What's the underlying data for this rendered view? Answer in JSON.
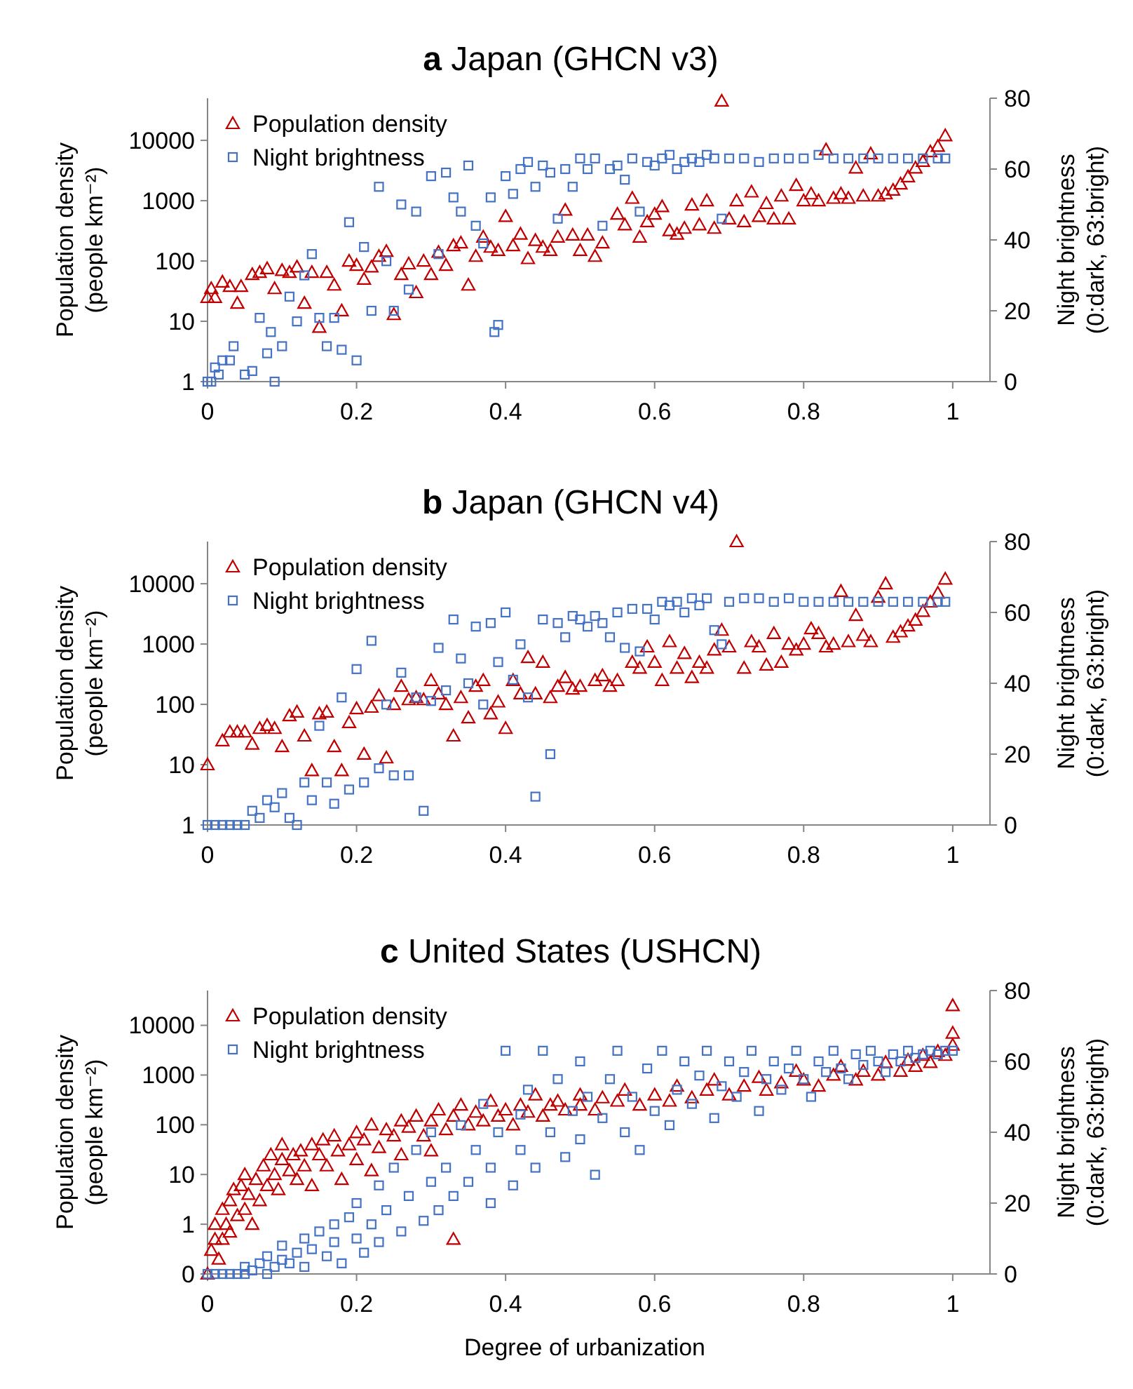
{
  "chart_data": [
    {
      "type": "scatter",
      "title": "a Japan (GHCN v3)",
      "ylabel": "Population density\n(people km⁻²)",
      "y2label": "Night brightness\n(0:dark, 63:bright)",
      "xlim": [
        0,
        1.05
      ],
      "xticks": [
        0,
        0.2,
        0.4,
        0.6,
        0.8,
        1
      ],
      "log": "y",
      "ylim": [
        1,
        50000
      ],
      "yticks": [
        1,
        10,
        100,
        1000,
        10000
      ],
      "y2lim": [
        0,
        80
      ],
      "y2ticks": [
        0,
        20,
        40,
        60,
        80
      ],
      "grid": false,
      "legend": "top left",
      "series": [
        {
          "name": "Population density",
          "color": "#c00000",
          "marker": "triangle",
          "x": [
            0,
            0.005,
            0.01,
            0.02,
            0.03,
            0.04,
            0.045,
            0.06,
            0.07,
            0.08,
            0.09,
            0.1,
            0.11,
            0.12,
            0.13,
            0.14,
            0.15,
            0.16,
            0.17,
            0.18,
            0.19,
            0.2,
            0.21,
            0.22,
            0.23,
            0.24,
            0.25,
            0.26,
            0.27,
            0.28,
            0.29,
            0.3,
            0.31,
            0.32,
            0.33,
            0.34,
            0.35,
            0.36,
            0.37,
            0.38,
            0.39,
            0.4,
            0.41,
            0.42,
            0.43,
            0.44,
            0.45,
            0.46,
            0.47,
            0.48,
            0.49,
            0.5,
            0.51,
            0.52,
            0.53,
            0.55,
            0.56,
            0.57,
            0.58,
            0.59,
            0.6,
            0.61,
            0.62,
            0.63,
            0.64,
            0.65,
            0.66,
            0.67,
            0.68,
            0.69,
            0.7,
            0.71,
            0.72,
            0.73,
            0.74,
            0.75,
            0.76,
            0.77,
            0.78,
            0.79,
            0.8,
            0.81,
            0.82,
            0.83,
            0.84,
            0.85,
            0.86,
            0.87,
            0.88,
            0.89,
            0.9,
            0.91,
            0.92,
            0.93,
            0.94,
            0.95,
            0.96,
            0.97,
            0.98,
            0.99
          ],
          "values": [
            25,
            35,
            25,
            45,
            38,
            20,
            38,
            60,
            65,
            75,
            35,
            70,
            65,
            80,
            20,
            65,
            8,
            65,
            40,
            15,
            100,
            85,
            50,
            80,
            120,
            145,
            13,
            60,
            90,
            30,
            100,
            60,
            140,
            85,
            180,
            200,
            40,
            120,
            250,
            170,
            150,
            550,
            180,
            280,
            110,
            220,
            170,
            150,
            250,
            700,
            270,
            150,
            270,
            120,
            200,
            600,
            400,
            1100,
            250,
            450,
            600,
            800,
            320,
            280,
            350,
            850,
            400,
            1000,
            350,
            45000,
            500,
            1000,
            450,
            1400,
            550,
            900,
            500,
            1200,
            500,
            1800,
            1000,
            1300,
            1000,
            7000,
            1100,
            1300,
            1100,
            3500,
            1200,
            6000,
            1200,
            1300,
            1500,
            1900,
            2500,
            3500,
            4500,
            6500,
            8000,
            12000
          ]
        },
        {
          "name": "Night brightness",
          "color": "#4472c4",
          "marker": "square",
          "axis": "y2",
          "x": [
            0,
            0.005,
            0.01,
            0.015,
            0.02,
            0.03,
            0.035,
            0.05,
            0.06,
            0.07,
            0.08,
            0.085,
            0.09,
            0.1,
            0.11,
            0.12,
            0.13,
            0.14,
            0.15,
            0.16,
            0.17,
            0.18,
            0.19,
            0.2,
            0.21,
            0.22,
            0.23,
            0.24,
            0.25,
            0.26,
            0.27,
            0.28,
            0.3,
            0.31,
            0.32,
            0.33,
            0.34,
            0.35,
            0.36,
            0.37,
            0.38,
            0.385,
            0.39,
            0.4,
            0.41,
            0.42,
            0.43,
            0.44,
            0.45,
            0.46,
            0.47,
            0.48,
            0.49,
            0.5,
            0.51,
            0.52,
            0.53,
            0.54,
            0.55,
            0.56,
            0.57,
            0.58,
            0.59,
            0.6,
            0.61,
            0.62,
            0.63,
            0.64,
            0.65,
            0.66,
            0.67,
            0.68,
            0.69,
            0.7,
            0.72,
            0.74,
            0.76,
            0.78,
            0.8,
            0.82,
            0.84,
            0.86,
            0.88,
            0.9,
            0.92,
            0.94,
            0.96,
            0.98,
            0.99
          ],
          "values": [
            0,
            0,
            4,
            2,
            6,
            6,
            10,
            2,
            3,
            18,
            8,
            14,
            0,
            10,
            24,
            17,
            30,
            36,
            18,
            10,
            18,
            9,
            45,
            6,
            38,
            20,
            55,
            34,
            20,
            50,
            26,
            48,
            58,
            36,
            59,
            52,
            48,
            61,
            44,
            39,
            52,
            14,
            16,
            58,
            53,
            60,
            62,
            55,
            61,
            59,
            46,
            60,
            55,
            63,
            60,
            63,
            44,
            60,
            61,
            57,
            63,
            48,
            62,
            61,
            63,
            64,
            60,
            62,
            63,
            62,
            64,
            63,
            46,
            63,
            63,
            62,
            63,
            63,
            63,
            64,
            63,
            63,
            63,
            63,
            63,
            63,
            63,
            63,
            63
          ]
        }
      ]
    },
    {
      "type": "scatter",
      "title": "b Japan (GHCN v4)",
      "ylabel": "Population density\n(people km⁻²)",
      "y2label": "Night brightness\n(0:dark, 63:bright)",
      "xlim": [
        0,
        1.05
      ],
      "xticks": [
        0,
        0.2,
        0.4,
        0.6,
        0.8,
        1
      ],
      "log": "y",
      "ylim": [
        1,
        50000
      ],
      "yticks": [
        1,
        10,
        100,
        1000,
        10000
      ],
      "y2lim": [
        0,
        80
      ],
      "y2ticks": [
        0,
        20,
        40,
        60,
        80
      ],
      "grid": false,
      "legend": "top left",
      "series": [
        {
          "name": "Population density",
          "color": "#c00000",
          "marker": "triangle",
          "x": [
            0,
            0.02,
            0.03,
            0.04,
            0.05,
            0.06,
            0.07,
            0.08,
            0.09,
            0.1,
            0.11,
            0.12,
            0.13,
            0.14,
            0.15,
            0.16,
            0.17,
            0.18,
            0.19,
            0.2,
            0.21,
            0.22,
            0.23,
            0.24,
            0.25,
            0.26,
            0.27,
            0.28,
            0.29,
            0.3,
            0.31,
            0.32,
            0.33,
            0.34,
            0.35,
            0.36,
            0.37,
            0.38,
            0.39,
            0.4,
            0.41,
            0.42,
            0.43,
            0.44,
            0.45,
            0.46,
            0.47,
            0.48,
            0.49,
            0.5,
            0.52,
            0.53,
            0.54,
            0.55,
            0.57,
            0.58,
            0.59,
            0.6,
            0.61,
            0.62,
            0.63,
            0.64,
            0.65,
            0.66,
            0.67,
            0.68,
            0.69,
            0.7,
            0.71,
            0.72,
            0.73,
            0.74,
            0.75,
            0.76,
            0.77,
            0.78,
            0.79,
            0.8,
            0.81,
            0.82,
            0.83,
            0.84,
            0.85,
            0.86,
            0.87,
            0.88,
            0.89,
            0.9,
            0.91,
            0.92,
            0.93,
            0.94,
            0.95,
            0.96,
            0.97,
            0.98,
            0.99
          ],
          "values": [
            10,
            25,
            35,
            35,
            35,
            22,
            40,
            45,
            40,
            20,
            65,
            75,
            30,
            8,
            70,
            75,
            20,
            8,
            50,
            85,
            15,
            90,
            140,
            13,
            100,
            200,
            120,
            130,
            120,
            250,
            150,
            100,
            30,
            130,
            60,
            200,
            250,
            70,
            110,
            40,
            250,
            150,
            600,
            150,
            500,
            130,
            200,
            280,
            180,
            200,
            250,
            300,
            200,
            250,
            500,
            400,
            900,
            500,
            250,
            1100,
            400,
            700,
            280,
            500,
            400,
            800,
            1700,
            900,
            50000,
            400,
            1100,
            900,
            450,
            1500,
            500,
            1000,
            800,
            1000,
            1800,
            1500,
            900,
            1000,
            7500,
            1100,
            3000,
            1400,
            1100,
            6000,
            10000,
            1300,
            1600,
            2000,
            2500,
            3500,
            5000,
            7000,
            12000
          ]
        },
        {
          "name": "Night brightness",
          "color": "#4472c4",
          "marker": "square",
          "axis": "y2",
          "x": [
            0,
            0.01,
            0.02,
            0.03,
            0.04,
            0.05,
            0.06,
            0.07,
            0.08,
            0.09,
            0.1,
            0.11,
            0.12,
            0.13,
            0.14,
            0.15,
            0.16,
            0.17,
            0.18,
            0.19,
            0.2,
            0.21,
            0.22,
            0.23,
            0.24,
            0.25,
            0.26,
            0.27,
            0.28,
            0.29,
            0.3,
            0.31,
            0.32,
            0.33,
            0.34,
            0.35,
            0.36,
            0.37,
            0.38,
            0.39,
            0.4,
            0.41,
            0.42,
            0.43,
            0.44,
            0.45,
            0.46,
            0.47,
            0.48,
            0.49,
            0.5,
            0.51,
            0.52,
            0.53,
            0.54,
            0.55,
            0.56,
            0.57,
            0.58,
            0.59,
            0.6,
            0.61,
            0.62,
            0.63,
            0.64,
            0.65,
            0.66,
            0.67,
            0.68,
            0.69,
            0.7,
            0.72,
            0.74,
            0.76,
            0.78,
            0.8,
            0.82,
            0.84,
            0.86,
            0.88,
            0.9,
            0.92,
            0.94,
            0.96,
            0.98,
            0.99
          ],
          "values": [
            0,
            0,
            0,
            0,
            0,
            0,
            4,
            2,
            7,
            5,
            9,
            2,
            0,
            12,
            7,
            28,
            12,
            6,
            36,
            10,
            44,
            12,
            52,
            16,
            34,
            14,
            43,
            14,
            36,
            4,
            35,
            50,
            38,
            58,
            47,
            40,
            56,
            34,
            57,
            46,
            60,
            41,
            51,
            36,
            8,
            58,
            20,
            57,
            53,
            59,
            58,
            56,
            59,
            57,
            53,
            60,
            50,
            61,
            49,
            61,
            58,
            63,
            62,
            63,
            60,
            64,
            62,
            64,
            55,
            51,
            63,
            64,
            64,
            63,
            64,
            63,
            63,
            63,
            63,
            63,
            63,
            63,
            63,
            63,
            63,
            63
          ]
        }
      ]
    },
    {
      "type": "scatter",
      "title": "c United States (USHCN)",
      "xlabel": "Degree of urbanization",
      "ylabel": "Population density\n(people km⁻²)",
      "y2label": "Night brightness\n(0:dark, 63:bright)",
      "xlim": [
        0,
        1.05
      ],
      "xticks": [
        0,
        0.2,
        0.4,
        0.6,
        0.8,
        1
      ],
      "log": "y",
      "ylim": [
        0.1,
        50000
      ],
      "yticks": [
        {
          "value": 0.1,
          "label": "0"
        },
        1,
        10,
        100,
        1000,
        10000
      ],
      "y2lim": [
        0,
        80
      ],
      "y2ticks": [
        0,
        20,
        40,
        60,
        80
      ],
      "grid": false,
      "legend": "top left",
      "series": [
        {
          "name": "Population density",
          "color": "#c00000",
          "marker": "triangle",
          "x": [
            0,
            0.005,
            0.01,
            0.01,
            0.015,
            0.02,
            0.02,
            0.025,
            0.03,
            0.03,
            0.035,
            0.04,
            0.045,
            0.05,
            0.05,
            0.055,
            0.06,
            0.065,
            0.07,
            0.075,
            0.08,
            0.085,
            0.09,
            0.095,
            0.1,
            0.1,
            0.11,
            0.115,
            0.12,
            0.125,
            0.13,
            0.14,
            0.14,
            0.15,
            0.155,
            0.16,
            0.17,
            0.175,
            0.18,
            0.19,
            0.2,
            0.2,
            0.21,
            0.22,
            0.22,
            0.23,
            0.24,
            0.25,
            0.26,
            0.26,
            0.27,
            0.28,
            0.29,
            0.3,
            0.3,
            0.31,
            0.32,
            0.33,
            0.33,
            0.34,
            0.35,
            0.36,
            0.37,
            0.38,
            0.39,
            0.4,
            0.41,
            0.42,
            0.43,
            0.44,
            0.45,
            0.46,
            0.47,
            0.48,
            0.5,
            0.5,
            0.52,
            0.53,
            0.55,
            0.56,
            0.58,
            0.6,
            0.62,
            0.63,
            0.65,
            0.67,
            0.68,
            0.7,
            0.72,
            0.74,
            0.75,
            0.77,
            0.79,
            0.8,
            0.82,
            0.84,
            0.85,
            0.87,
            0.88,
            0.9,
            0.91,
            0.93,
            0.94,
            0.95,
            0.96,
            0.97,
            0.98,
            0.99,
            1,
            1,
            1
          ],
          "values": [
            0.1,
            0.3,
            0.5,
            1,
            0.2,
            2,
            0.5,
            1,
            3,
            0.7,
            5,
            1.5,
            6,
            2,
            10,
            4,
            1,
            8,
            3,
            15,
            6,
            25,
            10,
            5,
            20,
            40,
            12,
            25,
            8,
            30,
            15,
            40,
            6,
            25,
            50,
            15,
            60,
            30,
            8,
            40,
            70,
            20,
            50,
            100,
            12,
            35,
            80,
            60,
            120,
            25,
            90,
            150,
            60,
            120,
            30,
            200,
            80,
            0.5,
            150,
            250,
            100,
            180,
            120,
            300,
            150,
            200,
            100,
            250,
            180,
            400,
            150,
            250,
            300,
            200,
            250,
            400,
            200,
            350,
            300,
            500,
            250,
            400,
            300,
            600,
            350,
            500,
            800,
            400,
            600,
            900,
            500,
            700,
            1200,
            800,
            600,
            1000,
            1500,
            800,
            1200,
            1000,
            1800,
            1200,
            2000,
            1500,
            2500,
            1800,
            3000,
            2500,
            4000,
            7000,
            25000
          ]
        },
        {
          "name": "Night brightness",
          "color": "#4472c4",
          "marker": "square",
          "axis": "y2",
          "x": [
            0,
            0.01,
            0.02,
            0.03,
            0.04,
            0.05,
            0.05,
            0.06,
            0.07,
            0.08,
            0.08,
            0.09,
            0.1,
            0.1,
            0.11,
            0.12,
            0.13,
            0.13,
            0.14,
            0.15,
            0.16,
            0.17,
            0.17,
            0.18,
            0.19,
            0.2,
            0.2,
            0.21,
            0.22,
            0.23,
            0.23,
            0.24,
            0.25,
            0.26,
            0.27,
            0.28,
            0.29,
            0.3,
            0.3,
            0.31,
            0.32,
            0.33,
            0.34,
            0.35,
            0.36,
            0.37,
            0.38,
            0.38,
            0.39,
            0.4,
            0.41,
            0.42,
            0.42,
            0.43,
            0.44,
            0.45,
            0.46,
            0.47,
            0.48,
            0.49,
            0.5,
            0.5,
            0.51,
            0.52,
            0.53,
            0.54,
            0.55,
            0.56,
            0.57,
            0.58,
            0.59,
            0.6,
            0.61,
            0.62,
            0.63,
            0.64,
            0.65,
            0.66,
            0.67,
            0.68,
            0.69,
            0.7,
            0.71,
            0.72,
            0.73,
            0.74,
            0.75,
            0.76,
            0.77,
            0.78,
            0.79,
            0.8,
            0.81,
            0.82,
            0.83,
            0.84,
            0.85,
            0.86,
            0.87,
            0.88,
            0.89,
            0.9,
            0.91,
            0.92,
            0.93,
            0.94,
            0.95,
            0.96,
            0.97,
            0.98,
            0.99,
            1
          ],
          "values": [
            0,
            0,
            0,
            0,
            0,
            0,
            2,
            1,
            3,
            0,
            5,
            2,
            4,
            8,
            3,
            6,
            10,
            2,
            7,
            12,
            5,
            14,
            9,
            3,
            16,
            10,
            20,
            6,
            14,
            25,
            9,
            18,
            30,
            12,
            22,
            35,
            15,
            26,
            40,
            18,
            30,
            22,
            42,
            26,
            35,
            48,
            20,
            30,
            40,
            63,
            25,
            45,
            35,
            52,
            30,
            63,
            40,
            55,
            33,
            46,
            60,
            38,
            50,
            28,
            44,
            55,
            63,
            40,
            50,
            35,
            58,
            46,
            63,
            42,
            52,
            60,
            48,
            56,
            63,
            44,
            53,
            60,
            50,
            57,
            63,
            46,
            55,
            60,
            52,
            58,
            63,
            55,
            50,
            60,
            57,
            63,
            58,
            55,
            62,
            59,
            63,
            60,
            57,
            62,
            60,
            63,
            61,
            62,
            63,
            62,
            63,
            63
          ]
        }
      ]
    }
  ]
}
